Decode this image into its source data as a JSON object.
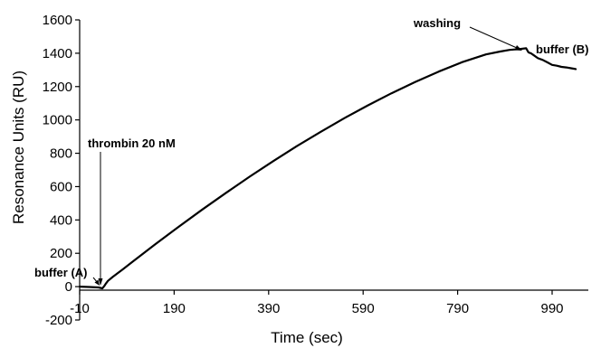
{
  "chart_data": {
    "type": "line",
    "title": "",
    "xlabel": "Time (sec)",
    "ylabel": "Resonance Units (RU)",
    "xlim": [
      -10,
      1050
    ],
    "ylim": [
      -200,
      1600
    ],
    "x_ticks": [
      -10,
      190,
      390,
      590,
      790,
      990
    ],
    "y_ticks": [
      -200,
      0,
      200,
      400,
      600,
      800,
      1000,
      1200,
      1400,
      1600
    ],
    "grid": false,
    "legend": "none",
    "colors": {
      "line": "#000000",
      "axis": "#000000",
      "background": "#ffffff"
    },
    "series": [
      {
        "x": [
          -10,
          10,
          30,
          38,
          42,
          46,
          50,
          60,
          70,
          80,
          100,
          150,
          200,
          250,
          300,
          350,
          400,
          450,
          500,
          550,
          600,
          650,
          700,
          750,
          800,
          850,
          880,
          900,
          920,
          935,
          940,
          945,
          950,
          960,
          970,
          980,
          990,
          1000,
          1010,
          1020,
          1030,
          1040
        ],
        "y": [
          0,
          -2,
          -5,
          -10,
          3,
          20,
          35,
          58,
          80,
          101,
          145,
          254,
          360,
          463,
          563,
          660,
          753,
          843,
          928,
          1010,
          1087,
          1160,
          1227,
          1290,
          1347,
          1393,
          1410,
          1420,
          1425,
          1430,
          1405,
          1400,
          1390,
          1370,
          1360,
          1345,
          1330,
          1325,
          1318,
          1315,
          1310,
          1305
        ]
      }
    ],
    "annotations": [
      {
        "text": "thrombin 20 nM",
        "x": 40,
        "y": 30
      },
      {
        "text": "buffer (A)",
        "x": 30,
        "y": 0
      },
      {
        "text": "washing",
        "x": 935,
        "y": 1430
      },
      {
        "text": "buffer (B)",
        "x": 1000,
        "y": 1320
      }
    ]
  }
}
